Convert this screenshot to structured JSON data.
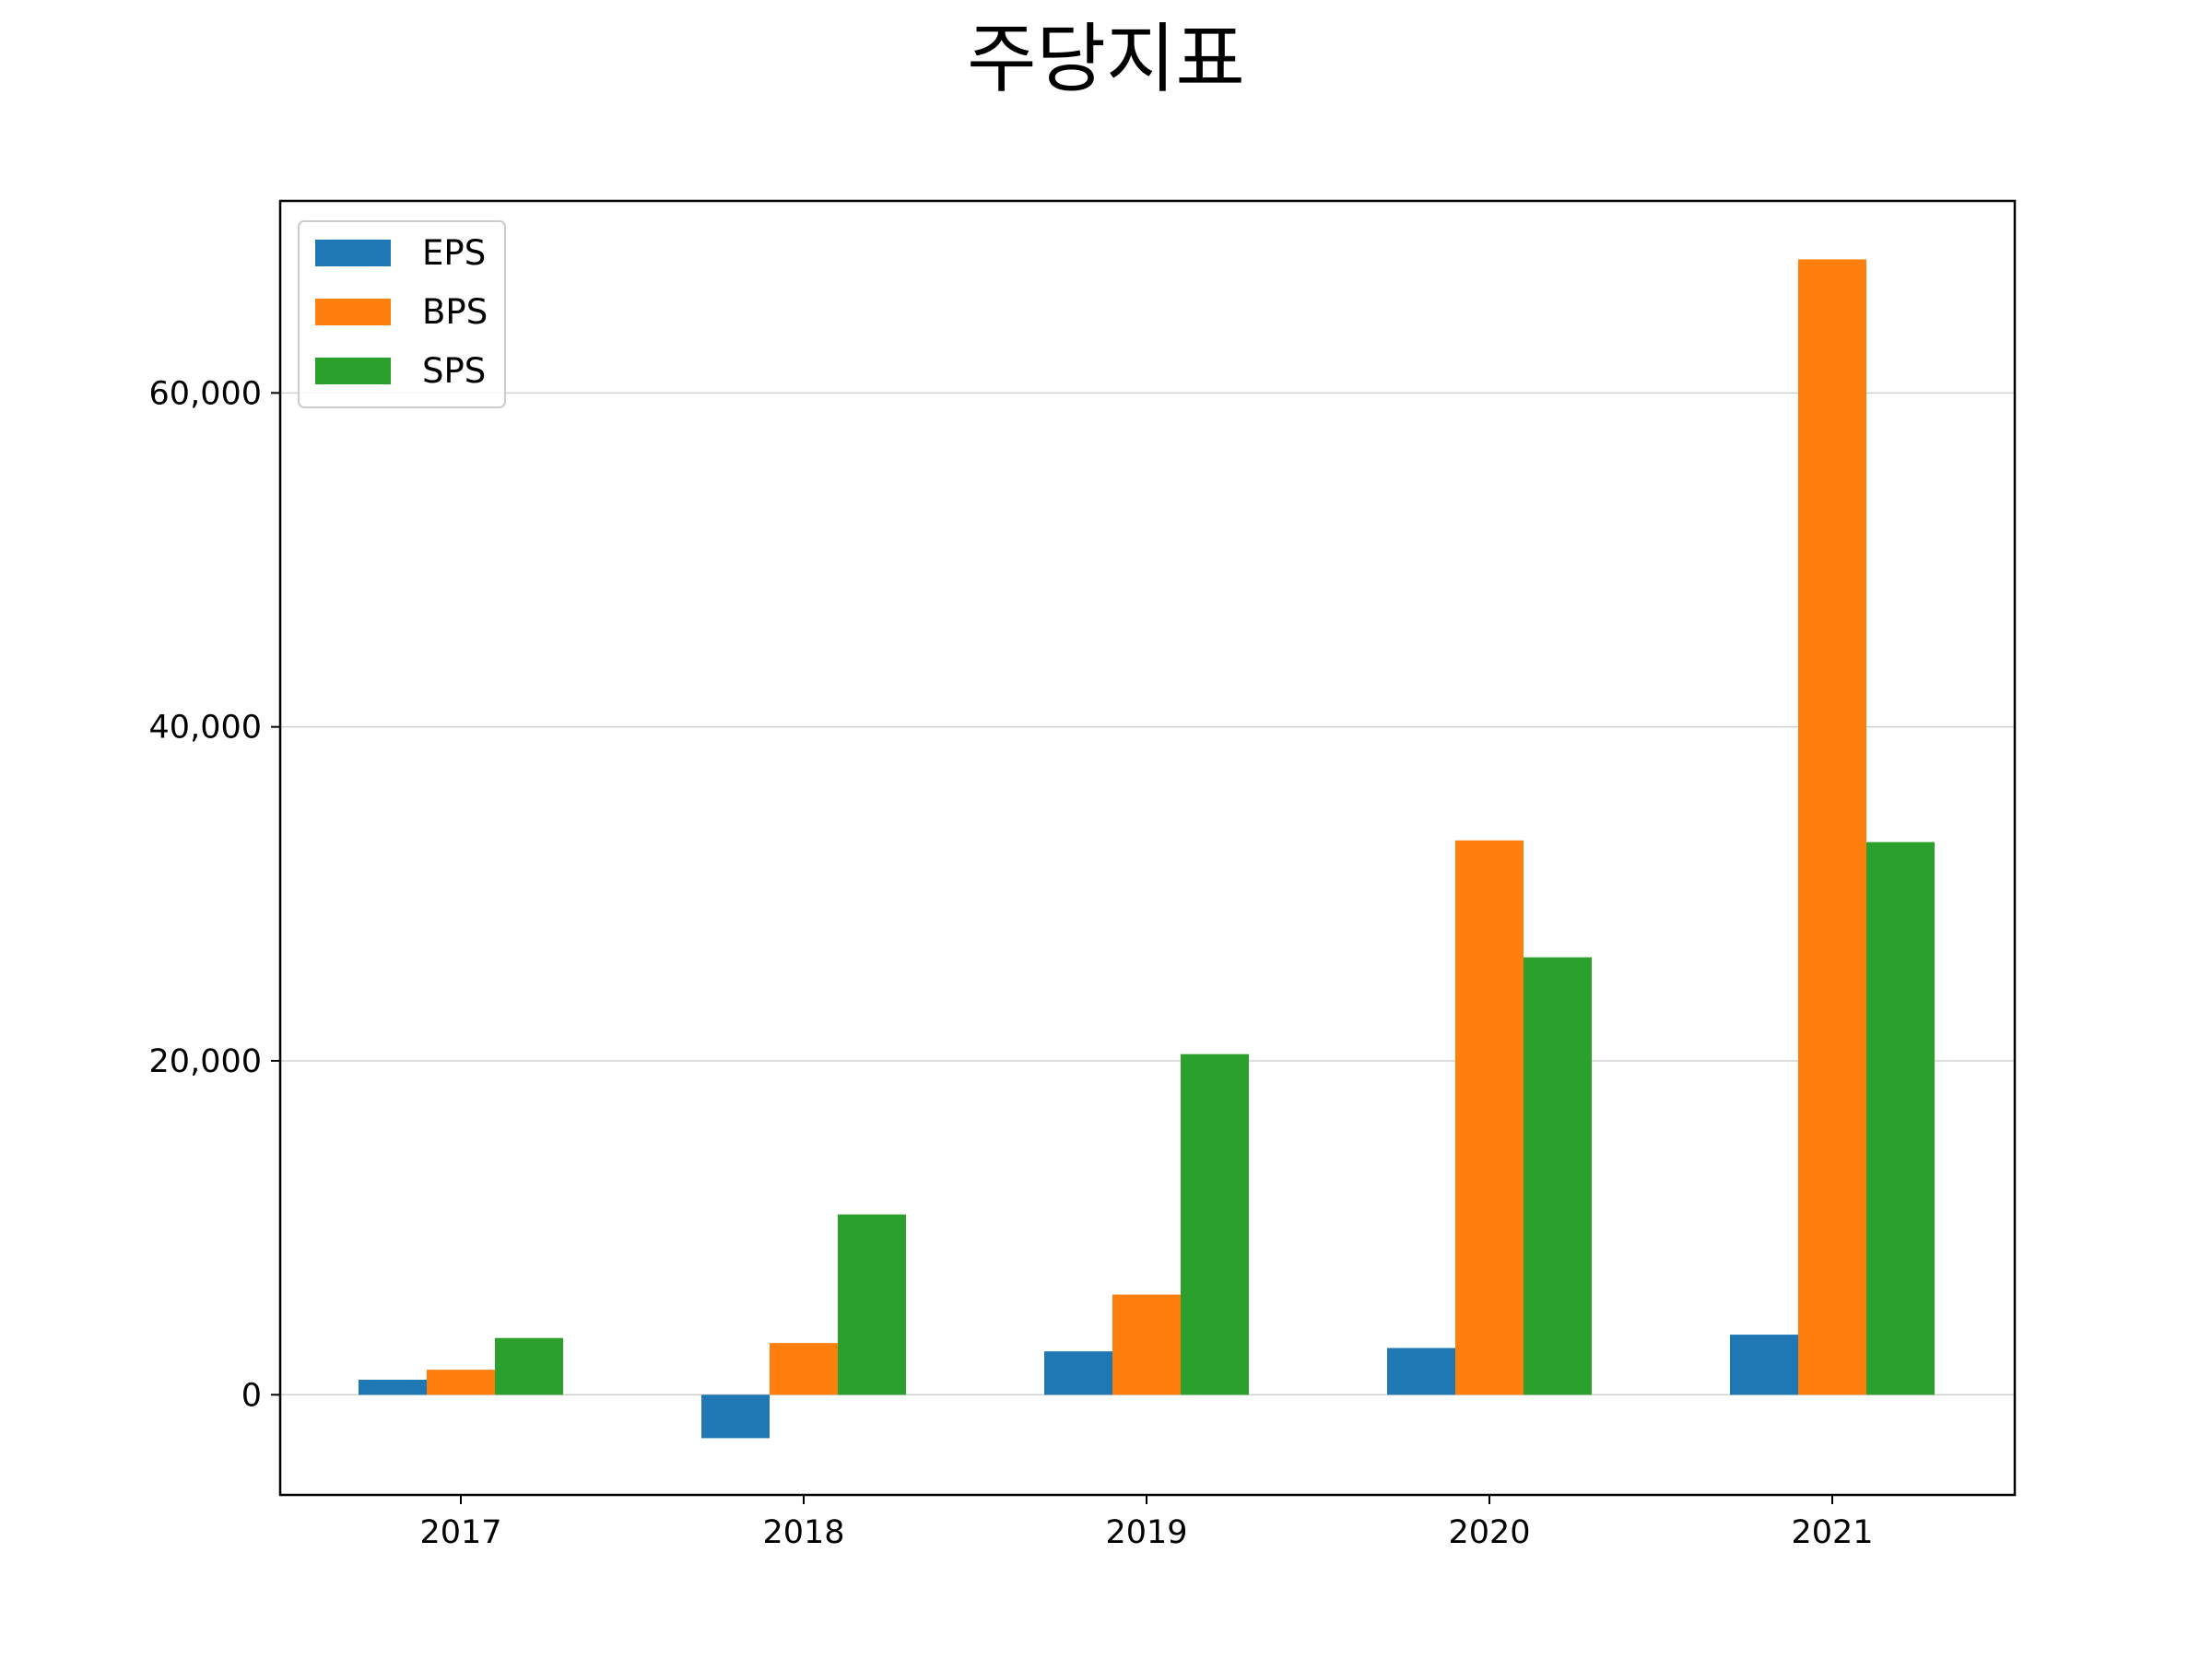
{
  "chart_data": {
    "type": "bar",
    "title": "주당지표",
    "xlabel": "",
    "ylabel": "",
    "categories": [
      "2017",
      "2018",
      "2019",
      "2020",
      "2021"
    ],
    "series": [
      {
        "name": "EPS",
        "color": "#1f77b4",
        "values": [
          900,
          -2600,
          2600,
          2800,
          3600
        ]
      },
      {
        "name": "BPS",
        "color": "#ff7f0e",
        "values": [
          1500,
          3100,
          6000,
          33200,
          68000
        ]
      },
      {
        "name": "SPS",
        "color": "#2ca02c",
        "values": [
          3400,
          10800,
          20400,
          26200,
          33100
        ]
      }
    ],
    "ylim": [
      -6000,
      71500
    ],
    "yticks": [
      0,
      20000,
      40000,
      60000
    ],
    "ytick_labels": [
      "0",
      "20,000",
      "40,000",
      "60,000"
    ],
    "grid": "horizontal",
    "legend_position": "top-left"
  }
}
